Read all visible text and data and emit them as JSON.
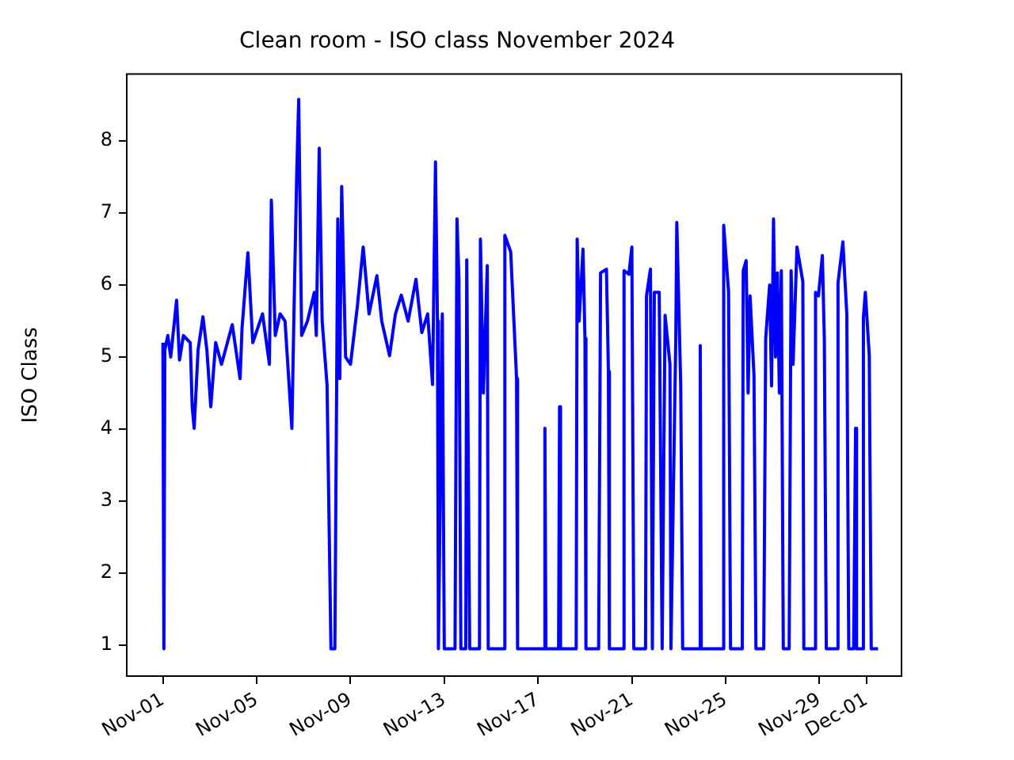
{
  "chart_data": {
    "type": "line",
    "title": "Clean room - ISO class November 2024",
    "ylabel": "ISO Class",
    "x": [
      "2024-11-01T00:00",
      "2024-11-01T01:00",
      "2024-11-01T02:00",
      "2024-11-01T05:00",
      "2024-11-01T08:00",
      "2024-11-01T14:00",
      "2024-11-01T17:00",
      "2024-11-01T21:00",
      "2024-11-02T04:00",
      "2024-11-02T06:00",
      "2024-11-02T08:00",
      "2024-11-02T12:00",
      "2024-11-02T17:00",
      "2024-11-02T21:00",
      "2024-11-03T01:00",
      "2024-11-03T06:00",
      "2024-11-03T12:00",
      "2024-11-03T23:00",
      "2024-11-04T07:00",
      "2024-11-04T09:00",
      "2024-11-04T15:00",
      "2024-11-04T20:00",
      "2024-11-05T06:00",
      "2024-11-05T13:00",
      "2024-11-05T15:00",
      "2024-11-05T19:00",
      "2024-11-06T00:00",
      "2024-11-06T05:00",
      "2024-11-06T12:00",
      "2024-11-06T14:00",
      "2024-11-06T17:00",
      "2024-11-06T19:00",
      "2024-11-06T22:00",
      "2024-11-07T04:00",
      "2024-11-07T11:00",
      "2024-11-07T13:00",
      "2024-11-07T16:00",
      "2024-11-07T19:00",
      "2024-11-08T00:00",
      "2024-11-08T04:00",
      "2024-11-08T08:00",
      "2024-11-08T11:00",
      "2024-11-08T13:00",
      "2024-11-08T15:00",
      "2024-11-08T19:00",
      "2024-11-09T00:00",
      "2024-11-09T07:00",
      "2024-11-09T13:00",
      "2024-11-09T19:00",
      "2024-11-10T03:00",
      "2024-11-10T08:00",
      "2024-11-10T16:00",
      "2024-11-10T22:00",
      "2024-11-11T04:00",
      "2024-11-11T11:00",
      "2024-11-11T19:00",
      "2024-11-12T01:00",
      "2024-11-12T07:00",
      "2024-11-12T12:00",
      "2024-11-12T15:00",
      "2024-11-12T17:00",
      "2024-11-12T18:00",
      "2024-11-12T22:00",
      "2024-11-13T00:00",
      "2024-11-13T11:00",
      "2024-11-13T13:00",
      "2024-11-13T15:00",
      "2024-11-13T17:00",
      "2024-11-13T22:00",
      "2024-11-13T23:00",
      "2024-11-14T02:00",
      "2024-11-14T12:00",
      "2024-11-14T13:00",
      "2024-11-14T16:00",
      "2024-11-14T20:00",
      "2024-11-14T21:00",
      "2024-11-15T13:00",
      "2024-11-15T14:00",
      "2024-11-15T20:00",
      "2024-11-16T02:00",
      "2024-11-16T03:00",
      "2024-11-17T06:00",
      "2024-11-17T07:00",
      "2024-11-17T08:00",
      "2024-11-17T21:00",
      "2024-11-17T22:00",
      "2024-11-17T23:00",
      "2024-11-18T15:00",
      "2024-11-18T16:00",
      "2024-11-18T18:00",
      "2024-11-18T22:00",
      "2024-11-19T00:00",
      "2024-11-19T01:00",
      "2024-11-19T14:00",
      "2024-11-19T16:00",
      "2024-11-19T22:00",
      "2024-11-20T00:00",
      "2024-11-20T01:00",
      "2024-11-20T15:00",
      "2024-11-20T16:00",
      "2024-11-20T21:00",
      "2024-11-21T00:00",
      "2024-11-21T02:00",
      "2024-11-21T14:00",
      "2024-11-21T15:00",
      "2024-11-21T19:00",
      "2024-11-21T21:00",
      "2024-11-21T23:00",
      "2024-11-22T04:00",
      "2024-11-22T07:00",
      "2024-11-22T10:00",
      "2024-11-22T15:00",
      "2024-11-22T16:00",
      "2024-11-22T21:00",
      "2024-11-22T22:00",
      "2024-11-23T02:00",
      "2024-11-23T04:00",
      "2024-11-23T21:00",
      "2024-11-23T22:00",
      "2024-11-23T23:00",
      "2024-11-24T21:00",
      "2024-11-24T22:00",
      "2024-11-25T03:00",
      "2024-11-25T05:00",
      "2024-11-25T17:00",
      "2024-11-25T18:00",
      "2024-11-25T21:00",
      "2024-11-25T23:00",
      "2024-11-26T01:00",
      "2024-11-26T05:00",
      "2024-11-26T07:00",
      "2024-11-26T15:00",
      "2024-11-26T17:00",
      "2024-11-26T21:00",
      "2024-11-26T23:00",
      "2024-11-27T01:00",
      "2024-11-27T03:00",
      "2024-11-27T05:00",
      "2024-11-27T07:00",
      "2024-11-27T09:00",
      "2024-11-27T11:00",
      "2024-11-27T17:00",
      "2024-11-27T19:00",
      "2024-11-27T21:00",
      "2024-11-28T01:00",
      "2024-11-28T07:00",
      "2024-11-28T08:00",
      "2024-11-28T19:00",
      "2024-11-28T20:00",
      "2024-11-28T23:00",
      "2024-11-29T03:00",
      "2024-11-29T05:00",
      "2024-11-29T07:00",
      "2024-11-29T18:00",
      "2024-11-29T19:00",
      "2024-11-30T00:00",
      "2024-11-30T04:00",
      "2024-11-30T06:00",
      "2024-11-30T11:00",
      "2024-11-30T13:00",
      "2024-11-30T14:00",
      "2024-11-30T20:00",
      "2024-11-30T21:00",
      "2024-11-30T23:00",
      "2024-12-01T03:00",
      "2024-12-01T05:00",
      "2024-12-01T12:00"
    ],
    "series": [
      {
        "color": "#0000ff",
        "values": [
          5.2,
          0.95,
          5.1,
          5.3,
          5.0,
          5.79,
          4.96,
          5.3,
          5.2,
          4.31,
          4.01,
          5.1,
          5.56,
          5.1,
          4.31,
          5.2,
          4.9,
          5.45,
          4.7,
          5.4,
          6.45,
          5.2,
          5.6,
          4.9,
          7.18,
          5.3,
          5.6,
          5.5,
          4.01,
          5.5,
          7.56,
          8.58,
          5.3,
          5.5,
          5.9,
          5.3,
          7.9,
          5.5,
          4.62,
          0.95,
          0.95,
          6.92,
          4.7,
          7.37,
          5.0,
          4.9,
          5.7,
          6.53,
          5.6,
          6.13,
          5.5,
          5.02,
          5.6,
          5.86,
          5.5,
          6.08,
          5.34,
          5.6,
          4.62,
          7.71,
          5.5,
          0.95,
          5.6,
          0.95,
          0.95,
          6.92,
          6.08,
          0.95,
          0.95,
          6.35,
          0.95,
          0.95,
          6.64,
          4.5,
          6.27,
          0.95,
          0.95,
          6.69,
          6.46,
          4.7,
          0.95,
          0.95,
          4.01,
          0.95,
          0.95,
          4.31,
          0.95,
          0.95,
          6.64,
          5.5,
          6.5,
          5.26,
          0.95,
          0.95,
          6.17,
          6.22,
          4.8,
          0.95,
          0.95,
          6.2,
          6.15,
          6.53,
          0.95,
          0.95,
          5.85,
          6.22,
          0.95,
          5.9,
          5.9,
          0.95,
          5.58,
          4.9,
          0.95,
          5.3,
          6.87,
          4.62,
          0.95,
          0.95,
          5.16,
          0.95,
          0.95,
          6.83,
          5.9,
          0.95,
          0.95,
          6.2,
          6.34,
          4.5,
          5.85,
          4.75,
          0.95,
          0.95,
          5.26,
          6.0,
          4.6,
          6.92,
          5.0,
          6.17,
          4.5,
          6.2,
          0.95,
          0.95,
          6.2,
          4.9,
          6.53,
          6.05,
          0.95,
          0.95,
          5.9,
          5.85,
          6.41,
          5.26,
          0.95,
          0.95,
          6.03,
          6.6,
          5.6,
          0.95,
          0.95,
          4.01,
          0.95,
          0.95,
          5.55,
          5.9,
          5.02,
          0.95,
          0.95
        ]
      }
    ],
    "xlim": [
      "2024-10-30T11:00",
      "2024-12-02T12:00"
    ],
    "xticks": [
      {
        "value": "2024-11-01",
        "label": "Nov-01"
      },
      {
        "value": "2024-11-05",
        "label": "Nov-05"
      },
      {
        "value": "2024-11-09",
        "label": "Nov-09"
      },
      {
        "value": "2024-11-13",
        "label": "Nov-13"
      },
      {
        "value": "2024-11-17",
        "label": "Nov-17"
      },
      {
        "value": "2024-11-21",
        "label": "Nov-21"
      },
      {
        "value": "2024-11-25",
        "label": "Nov-25"
      },
      {
        "value": "2024-11-29",
        "label": "Nov-29"
      },
      {
        "value": "2024-12-01",
        "label": "Dec-01"
      }
    ],
    "ylim": [
      0.57,
      8.93
    ],
    "yticks": [
      1,
      2,
      3,
      4,
      5,
      6,
      7,
      8
    ],
    "grid": false,
    "legend": false,
    "marker": "none",
    "line_style": "solid"
  }
}
